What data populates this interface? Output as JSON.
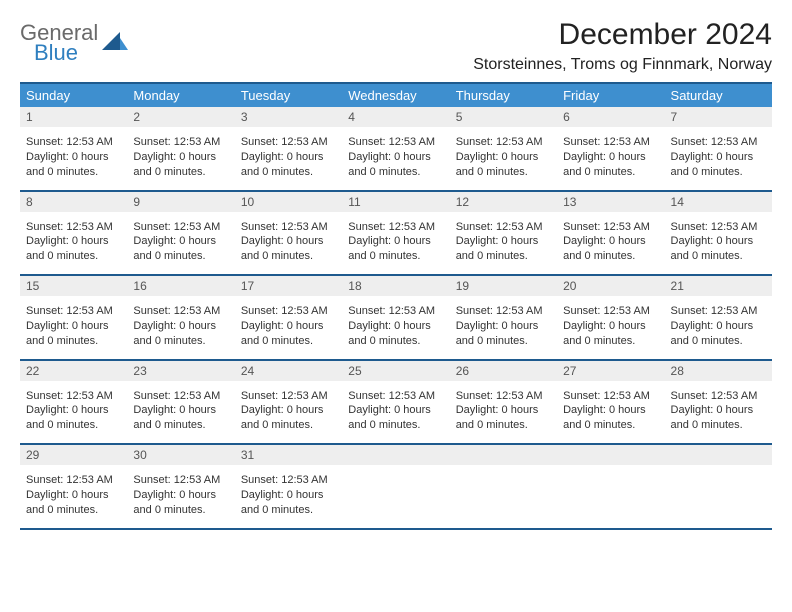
{
  "logo": {
    "text1": "General",
    "text2": "Blue"
  },
  "title": "December 2024",
  "location": "Storsteinnes, Troms og Finnmark, Norway",
  "colors": {
    "header_bg": "#3e8fcf",
    "week_border": "#1e5a8e",
    "daynum_bg": "#eeeeee",
    "logo_gray": "#6a6a6a",
    "logo_blue": "#2f7fbf"
  },
  "day_labels": [
    "Sunday",
    "Monday",
    "Tuesday",
    "Wednesday",
    "Thursday",
    "Friday",
    "Saturday"
  ],
  "cell_text": {
    "sunset": "Sunset: 12:53 AM",
    "daylight1": "Daylight: 0 hours",
    "daylight2": "and 0 minutes."
  },
  "weeks": [
    {
      "days": [
        {
          "n": "1"
        },
        {
          "n": "2"
        },
        {
          "n": "3"
        },
        {
          "n": "4"
        },
        {
          "n": "5"
        },
        {
          "n": "6"
        },
        {
          "n": "7"
        }
      ]
    },
    {
      "days": [
        {
          "n": "8"
        },
        {
          "n": "9"
        },
        {
          "n": "10"
        },
        {
          "n": "11"
        },
        {
          "n": "12"
        },
        {
          "n": "13"
        },
        {
          "n": "14"
        }
      ]
    },
    {
      "days": [
        {
          "n": "15"
        },
        {
          "n": "16"
        },
        {
          "n": "17"
        },
        {
          "n": "18"
        },
        {
          "n": "19"
        },
        {
          "n": "20"
        },
        {
          "n": "21"
        }
      ]
    },
    {
      "days": [
        {
          "n": "22"
        },
        {
          "n": "23"
        },
        {
          "n": "24"
        },
        {
          "n": "25"
        },
        {
          "n": "26"
        },
        {
          "n": "27"
        },
        {
          "n": "28"
        }
      ]
    },
    {
      "days": [
        {
          "n": "29"
        },
        {
          "n": "30"
        },
        {
          "n": "31"
        },
        {
          "n": ""
        },
        {
          "n": ""
        },
        {
          "n": ""
        },
        {
          "n": ""
        }
      ]
    }
  ]
}
